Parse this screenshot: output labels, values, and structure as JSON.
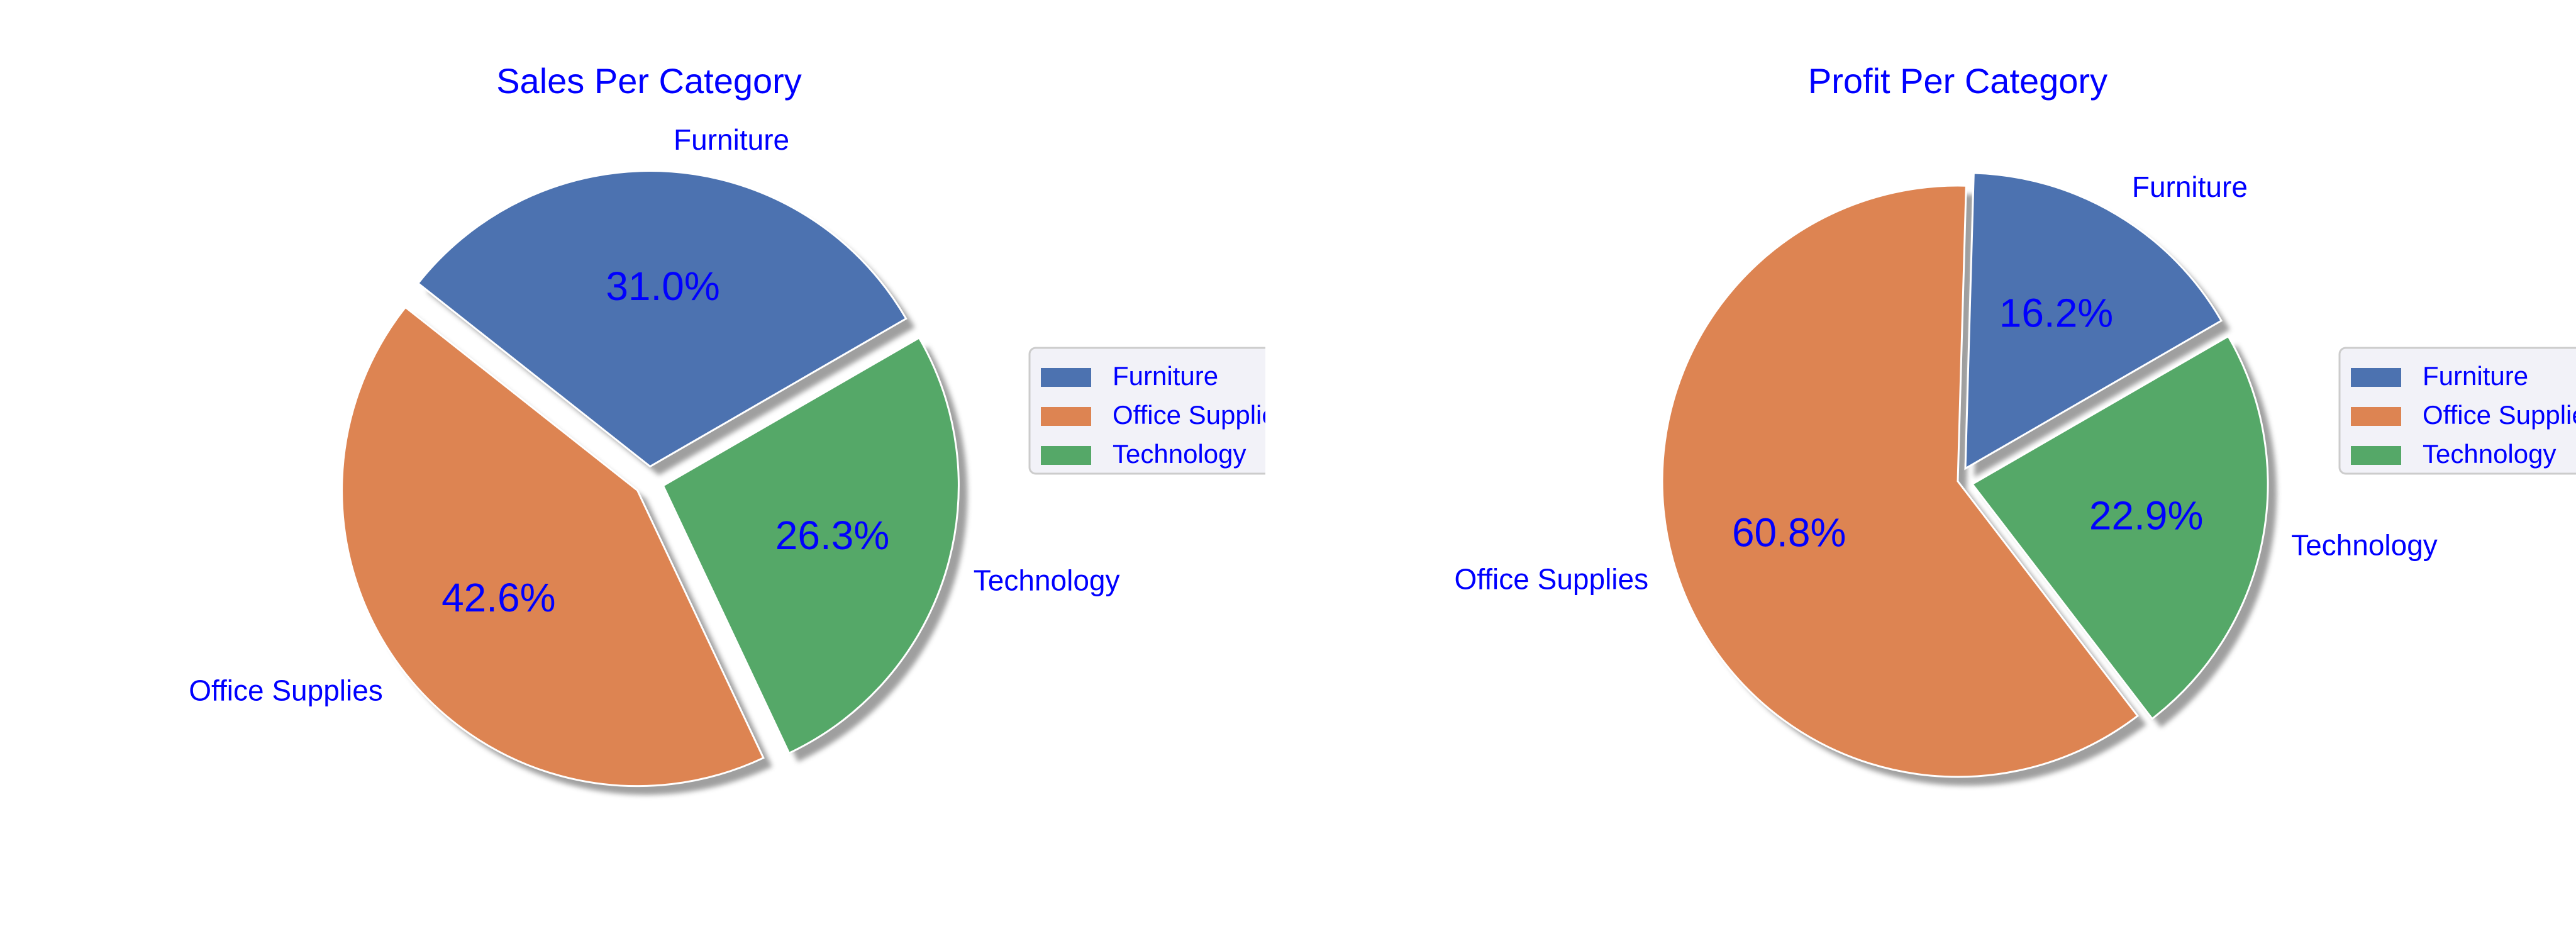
{
  "colors": {
    "text": "#0000ff",
    "furniture": "#4c72b0",
    "office_supplies": "#dd8452",
    "technology": "#55a868",
    "legend_bg": "#f2f2f8",
    "legend_border": "#cccccc",
    "shadow": "#7f7f7f",
    "edge": "#ffffff"
  },
  "chart_data": [
    {
      "type": "pie",
      "title": "Sales Per Category",
      "labels": [
        "Furniture",
        "Office Supplies",
        "Technology"
      ],
      "values": [
        31.0,
        42.6,
        26.3
      ],
      "autopct": [
        "31.0%",
        "42.6%",
        "26.3%"
      ],
      "explode": [
        0.05,
        0.05,
        0.05
      ],
      "start_angle_deg": 30,
      "shadow": true,
      "legend": {
        "entries": [
          "Furniture",
          "Office Supplies",
          "Technology"
        ],
        "placement": "right, clipped"
      }
    },
    {
      "type": "pie",
      "title": "Profit Per Category",
      "labels": [
        "Furniture",
        "Office Supplies",
        "Technology"
      ],
      "values": [
        16.2,
        60.8,
        22.9
      ],
      "autopct": [
        "16.2%",
        "60.8%",
        "22.9%"
      ],
      "explode": [
        0.05,
        0.0,
        0.05
      ],
      "start_angle_deg": 30,
      "shadow": true,
      "legend": {
        "entries": [
          "Furniture",
          "Office Supplies",
          "Technology"
        ],
        "placement": "right, clipped"
      }
    }
  ]
}
